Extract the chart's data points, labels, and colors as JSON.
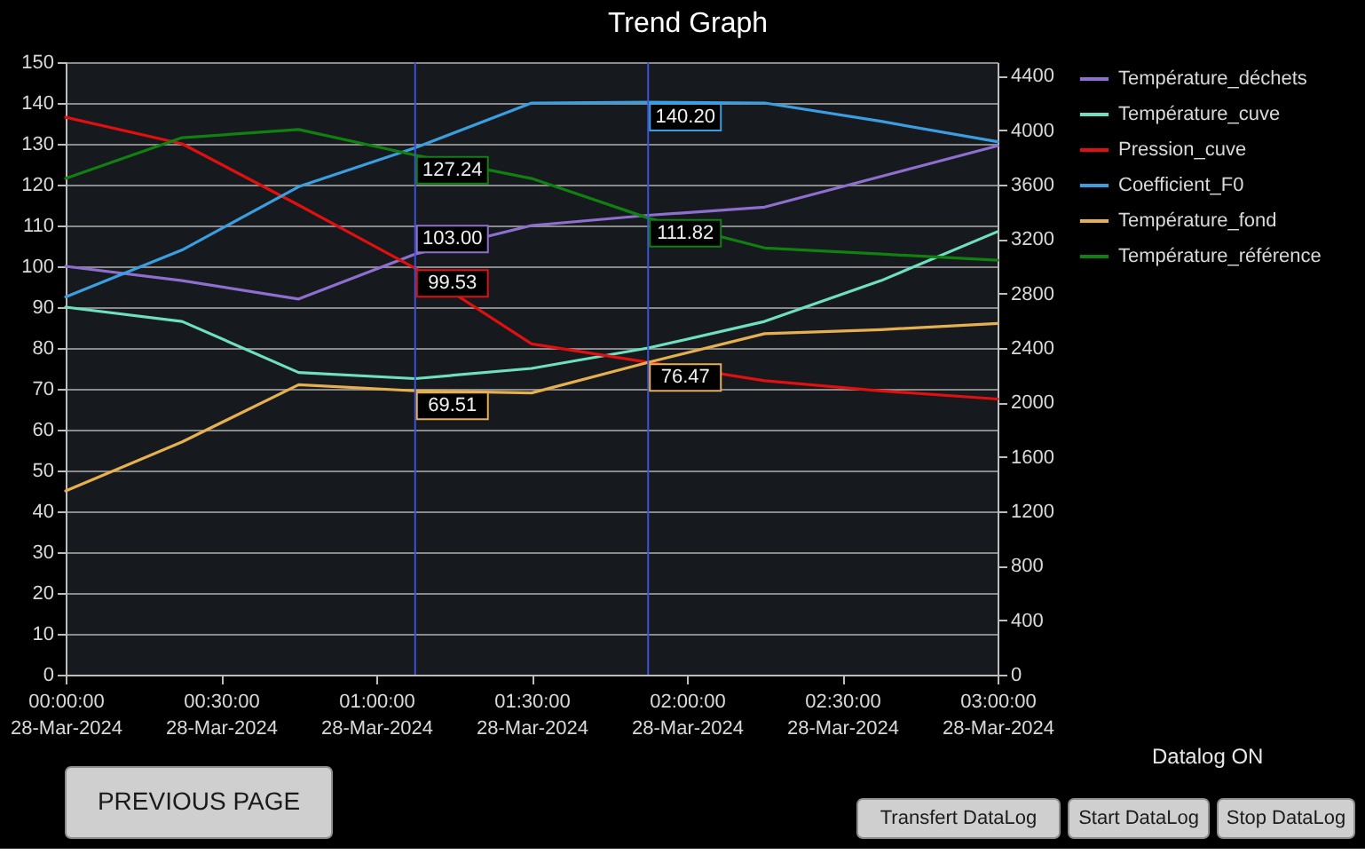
{
  "chart_data": [
    {
      "type": "line",
      "title": "Trend Graph",
      "x": [
        "2024-03-28T00:00",
        "2024-03-28T00:22:30",
        "2024-03-28T00:45",
        "2024-03-28T01:07:30",
        "2024-03-28T01:30",
        "2024-03-28T01:52:30",
        "2024-03-28T02:15",
        "2024-03-28T02:37:30",
        "2024-03-28T03:00"
      ],
      "xlim": [
        "2024-03-28T00:00",
        "2024-03-28T03:00"
      ],
      "xticks": [
        {
          "value": "2024-03-28T00:00",
          "label": "00:00:00\n28-Mar-2024"
        },
        {
          "value": "2024-03-28T00:30",
          "label": "00:30:00\n28-Mar-2024"
        },
        {
          "value": "2024-03-28T01:00",
          "label": "01:00:00\n28-Mar-2024"
        },
        {
          "value": "2024-03-28T01:30",
          "label": "01:30:00\n28-Mar-2024"
        },
        {
          "value": "2024-03-28T02:00",
          "label": "02:00:00\n28-Mar-2024"
        },
        {
          "value": "2024-03-28T02:30",
          "label": "02:30:00\n28-Mar-2024"
        },
        {
          "value": "2024-03-28T03:00",
          "label": "03:00:00\n28-Mar-2024"
        }
      ],
      "ylim": [
        0,
        150
      ],
      "yticks": [
        0,
        10,
        20,
        30,
        40,
        50,
        60,
        70,
        80,
        90,
        100,
        110,
        120,
        130,
        140,
        150
      ],
      "y2lim": [
        0,
        4500
      ],
      "y2ticks": [
        0,
        400,
        800,
        1200,
        1600,
        2000,
        2400,
        2800,
        3200,
        3600,
        4000,
        4400
      ],
      "grid": "y",
      "legend": "right",
      "series": [
        {
          "name": "Température_déchets",
          "color": "#8e6fd0",
          "values": [
            100,
            96.5,
            92,
            103.0,
            110,
            112.5,
            114.5,
            122,
            129.5
          ],
          "value_labels": [
            null,
            null,
            null,
            "103.00",
            null,
            null,
            null,
            null,
            null
          ]
        },
        {
          "name": "Température_cuve",
          "color": "#6fe0bf",
          "values": [
            90,
            86.5,
            74,
            72.5,
            75,
            80,
            86.5,
            96.5,
            108.5
          ]
        },
        {
          "name": "Pression_cuve",
          "color": "#e01010",
          "values": [
            136.5,
            130,
            115,
            99.53,
            81,
            76.5,
            72,
            69.5,
            67.5
          ],
          "value_labels": [
            null,
            null,
            null,
            "99.53",
            null,
            null,
            null,
            null,
            null
          ]
        },
        {
          "name": "Coefficient_F0",
          "color": "#3a9ee0",
          "values": [
            92.5,
            104,
            119.5,
            129,
            140,
            140.2,
            140,
            135.5,
            130.5
          ],
          "value_labels": [
            null,
            null,
            null,
            null,
            null,
            "140.20",
            null,
            null,
            null
          ]
        },
        {
          "name": "Température_fond",
          "color": "#e6b050",
          "values": [
            45,
            57,
            71,
            69.51,
            69,
            76.47,
            83.5,
            84.5,
            86
          ],
          "value_labels": [
            null,
            null,
            null,
            "69.51",
            null,
            "76.47",
            null,
            null,
            null
          ]
        },
        {
          "name": "Température_référence",
          "color": "#108010",
          "values": [
            121.5,
            131.5,
            133.5,
            127.24,
            121.5,
            111.82,
            104.5,
            103,
            101.5
          ],
          "value_labels": [
            null,
            null,
            null,
            "127.24",
            null,
            "111.82",
            null,
            null,
            null
          ]
        }
      ],
      "ref_lines": [
        {
          "axis": "x",
          "value": "2024-03-28T01:07:30",
          "color": "#3d52d5"
        },
        {
          "axis": "x",
          "value": "2024-03-28T01:52:30",
          "color": "#3d52d5"
        }
      ]
    },
    {
      "type": "other",
      "annotations": [
        "PREVIOUS PAGE",
        "Datalog ON",
        "Transfert DataLog",
        "Start DataLog",
        "Stop DataLog"
      ]
    }
  ]
}
